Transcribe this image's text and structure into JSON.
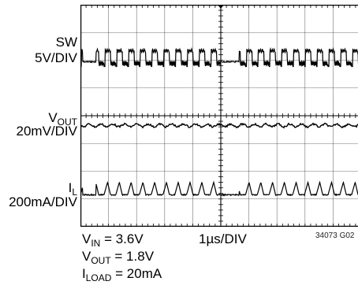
{
  "channels": [
    {
      "name": "SW",
      "sub": "",
      "scale": "5V/DIV"
    },
    {
      "name": "V",
      "sub": "OUT",
      "scale": "20mV/DIV"
    },
    {
      "name": "I",
      "sub": "L",
      "scale": "200mA/DIV"
    }
  ],
  "timebase": "1µs/DIV",
  "conditions": [
    {
      "sym": "V",
      "sub": "IN",
      "rest": " = 3.6V"
    },
    {
      "sym": "V",
      "sub": "OUT",
      "rest": " = 1.8V"
    },
    {
      "sym": "I",
      "sub": "LOAD",
      "rest": " = 20mA"
    }
  ],
  "figure_id": "34073 G02",
  "chart_data": {
    "type": "line",
    "x_divisions": 10,
    "y_divisions": 8,
    "grid": true,
    "series": [
      {
        "name": "SW",
        "pattern": "burst switching pulses, gaps around 0.1–0.5 div and 5.0–5.6 div"
      },
      {
        "name": "VOUT",
        "pattern": "small ripple around midscreen, ~0.3 div peak-to-peak"
      },
      {
        "name": "IL",
        "pattern": "triangular current pulses aligned with SW bursts"
      }
    ]
  }
}
